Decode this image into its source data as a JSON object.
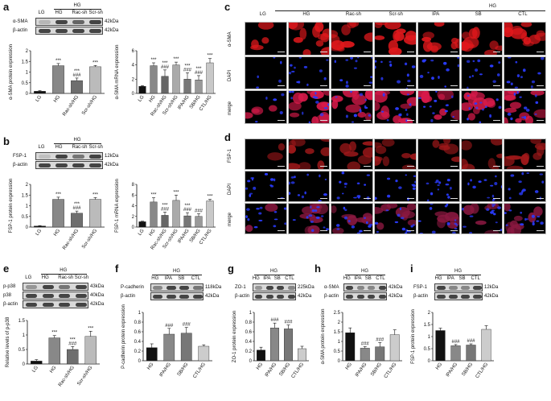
{
  "panel_labels": {
    "a": "a",
    "b": "b",
    "c": "c",
    "d": "d",
    "e": "e",
    "f": "f",
    "g": "g",
    "h": "h",
    "i": "i"
  },
  "panel_a": {
    "group_header": "HG",
    "lanes": [
      "LG",
      "HG",
      "Rac-sh",
      "Scr-sh"
    ],
    "blot_rows": [
      {
        "label": "α-SMA",
        "size": "42kDa",
        "intensity": [
          0.2,
          0.9,
          0.7,
          0.9
        ]
      },
      {
        "label": "β-actin",
        "size": "42kDa",
        "intensity": [
          0.9,
          0.9,
          0.9,
          0.9
        ]
      }
    ]
  },
  "panel_b": {
    "group_header": "HG",
    "lanes": [
      "LG",
      "HG",
      "Rac-sh",
      "Scr-sh"
    ],
    "blot_rows": [
      {
        "label": "FSP-1",
        "size": "12kDa",
        "intensity": [
          0.15,
          0.9,
          0.6,
          0.9
        ]
      },
      {
        "label": "β-actin",
        "size": "42kDa",
        "intensity": [
          0.9,
          0.9,
          0.9,
          0.9
        ]
      }
    ]
  },
  "panel_e": {
    "group_header": "HG",
    "lanes": [
      "LG",
      "HG",
      "Rac-sh",
      "Scr-sh"
    ],
    "blot_rows": [
      {
        "label": "p-p38",
        "size": "43kDa",
        "intensity": [
          0.4,
          0.9,
          0.6,
          0.9
        ]
      },
      {
        "label": "p38",
        "size": "40kDa",
        "intensity": [
          0.9,
          0.9,
          0.9,
          0.9
        ]
      },
      {
        "label": "β-actin",
        "size": "42kDa",
        "intensity": [
          0.9,
          0.9,
          0.9,
          0.9
        ]
      }
    ]
  },
  "panel_f": {
    "group_header": "HG",
    "lanes": [
      "HG",
      "IPA",
      "SB",
      "CTL"
    ],
    "blot_rows": [
      {
        "label": "P-cadherin",
        "size": "118kDa",
        "intensity": [
          0.5,
          0.9,
          0.9,
          0.6
        ]
      },
      {
        "label": "β-actin",
        "size": "42kDa",
        "intensity": [
          0.9,
          0.9,
          0.9,
          0.9
        ]
      }
    ]
  },
  "panel_g": {
    "group_header": "HG",
    "lanes": [
      "HG",
      "IPA",
      "SB",
      "CTL"
    ],
    "blot_rows": [
      {
        "label": "ZO-1",
        "size": "225kDa",
        "intensity": [
          0.4,
          0.9,
          0.9,
          0.5
        ]
      },
      {
        "label": "β-actin",
        "size": "42kDa",
        "intensity": [
          0.9,
          0.9,
          0.9,
          0.9
        ]
      }
    ]
  },
  "panel_h": {
    "group_header": "HG",
    "lanes": [
      "HG",
      "IPA",
      "SB",
      "CTL"
    ],
    "blot_rows": [
      {
        "label": "α-SMA",
        "size": "42kDa",
        "intensity": [
          0.9,
          0.5,
          0.5,
          0.9
        ]
      },
      {
        "label": "β-actin",
        "size": "42kDa",
        "intensity": [
          0.9,
          0.9,
          0.9,
          0.9
        ]
      }
    ]
  },
  "panel_i": {
    "group_header": "HG",
    "lanes": [
      "HG",
      "IPA",
      "SB",
      "CTL"
    ],
    "blot_rows": [
      {
        "label": "FSP-1",
        "size": "12kDa",
        "intensity": [
          0.9,
          0.5,
          0.5,
          0.9
        ]
      },
      {
        "label": "β-actin",
        "size": "42kDa",
        "intensity": [
          0.9,
          0.9,
          0.9,
          0.9
        ]
      }
    ]
  },
  "panel_c": {
    "group_header": "HG",
    "columns": [
      "LG",
      "HG",
      "Rac-sh",
      "Scr-sh",
      "IPA",
      "SB",
      "CTL"
    ],
    "rows": [
      "α-SMA",
      "DAPI",
      "merge"
    ]
  },
  "panel_d": {
    "rows": [
      "FSP-1",
      "DAPI",
      "merge"
    ]
  },
  "chart_data": [
    {
      "id": "a_protein",
      "type": "bar",
      "categories": [
        "LG",
        "HG",
        "Rac-sh/HG",
        "Scr-sh/HG"
      ],
      "values": [
        0.1,
        1.3,
        0.6,
        1.25
      ],
      "errors": [
        0.03,
        0.1,
        0.12,
        0.06
      ],
      "colors": [
        "#111111",
        "#888888",
        "#6e6e6e",
        "#bbbbbb"
      ],
      "annotations": [
        "",
        "***",
        "***\n###",
        "***"
      ],
      "ylabel": "α-SMA protein expression",
      "ylim": [
        0,
        2.0
      ],
      "yticks": [
        0.0,
        0.5,
        1.0,
        1.5,
        2.0
      ]
    },
    {
      "id": "a_mrna",
      "type": "bar",
      "categories": [
        "LG",
        "HG",
        "Rac-sh/HG",
        "Scr-sh/HG",
        "IPA/HG",
        "SB/HG",
        "CTL/HG"
      ],
      "values": [
        1.0,
        3.9,
        2.4,
        4.0,
        2.0,
        1.9,
        4.3
      ],
      "errors": [
        0.1,
        0.4,
        0.9,
        0.4,
        0.9,
        0.6,
        0.6
      ],
      "colors": [
        "#111111",
        "#888888",
        "#666666",
        "#aaaaaa",
        "#777777",
        "#999999",
        "#c8c8c8"
      ],
      "annotations": [
        "",
        "***",
        "***\n###",
        "***",
        "***\n###",
        "***\n###",
        "***"
      ],
      "ylabel": "α-SMA mRNA expression",
      "ylim": [
        0,
        6
      ],
      "yticks": [
        0,
        2,
        4,
        6
      ]
    },
    {
      "id": "b_protein",
      "type": "bar",
      "categories": [
        "LG",
        "HG",
        "Rac-sh/HG",
        "Scr-sh/HG"
      ],
      "values": [
        0.05,
        1.3,
        0.65,
        1.3
      ],
      "errors": [
        0.02,
        0.1,
        0.1,
        0.08
      ],
      "colors": [
        "#111111",
        "#888888",
        "#6e6e6e",
        "#bbbbbb"
      ],
      "annotations": [
        "",
        "***",
        "***\n###",
        "***"
      ],
      "ylabel": "FSP-1 protein expression",
      "ylim": [
        0,
        2.0
      ],
      "yticks": [
        0.0,
        0.5,
        1.0,
        1.5,
        2.0
      ]
    },
    {
      "id": "b_mrna",
      "type": "bar",
      "categories": [
        "LG",
        "HG",
        "Rac-sh/HG",
        "Scr-sh/HG",
        "IPA/HG",
        "SB/HG",
        "CTL/HG"
      ],
      "values": [
        1.0,
        4.7,
        2.2,
        5.0,
        2.1,
        2.0,
        4.9
      ],
      "errors": [
        0.1,
        0.8,
        0.6,
        1.0,
        0.6,
        0.5,
        0.3
      ],
      "colors": [
        "#111111",
        "#888888",
        "#666666",
        "#aaaaaa",
        "#777777",
        "#999999",
        "#c8c8c8"
      ],
      "annotations": [
        "",
        "***",
        "***\n###",
        "***",
        "***\n###",
        "###",
        "***"
      ],
      "ylabel": "FSP-1 mRNA expression",
      "ylim": [
        0,
        8
      ],
      "yticks": [
        0,
        2,
        4,
        6,
        8
      ]
    },
    {
      "id": "e_p38",
      "type": "bar",
      "categories": [
        "LG",
        "HG",
        "Rac-sh/HG",
        "Scr-sh/HG"
      ],
      "values": [
        0.1,
        0.9,
        0.5,
        0.95
      ],
      "errors": [
        0.05,
        0.08,
        0.1,
        0.18
      ],
      "colors": [
        "#111111",
        "#888888",
        "#6e6e6e",
        "#bbbbbb"
      ],
      "annotations": [
        "",
        "***",
        "***\n###",
        "***"
      ],
      "ylabel": "Relative levels of p-p38",
      "ylim": [
        0,
        1.5
      ],
      "yticks": [
        0.0,
        0.5,
        1.0,
        1.5
      ]
    },
    {
      "id": "f_pcad",
      "type": "bar",
      "categories": [
        "HG",
        "IPA/HG",
        "SB/HG",
        "CTL/HG"
      ],
      "values": [
        0.27,
        0.55,
        0.57,
        0.3
      ],
      "errors": [
        0.08,
        0.12,
        0.12,
        0.03
      ],
      "colors": [
        "#111111",
        "#888888",
        "#777777",
        "#cccccc"
      ],
      "annotations": [
        "",
        "###",
        "###",
        ""
      ],
      "ylabel": "P-cadherin protein expression",
      "ylim": [
        0,
        1.0
      ],
      "yticks": [
        0.0,
        0.2,
        0.4,
        0.6,
        0.8,
        1.0
      ]
    },
    {
      "id": "g_zo1",
      "type": "bar",
      "categories": [
        "HG",
        "IPA/HG",
        "SB/HG",
        "CTL/HG"
      ],
      "values": [
        0.22,
        0.68,
        0.66,
        0.25
      ],
      "errors": [
        0.06,
        0.1,
        0.08,
        0.05
      ],
      "colors": [
        "#111111",
        "#888888",
        "#777777",
        "#cccccc"
      ],
      "annotations": [
        "",
        "###",
        "###",
        ""
      ],
      "ylabel": "ZO-1 protein expression",
      "ylim": [
        0,
        1.0
      ],
      "yticks": [
        0.0,
        0.2,
        0.4,
        0.6,
        0.8,
        1.0
      ]
    },
    {
      "id": "h_asma",
      "type": "bar",
      "categories": [
        "HG",
        "IPA/HG",
        "SB/HG",
        "CTL/HG"
      ],
      "values": [
        1.45,
        0.65,
        0.72,
        1.35
      ],
      "errors": [
        0.25,
        0.08,
        0.22,
        0.25
      ],
      "colors": [
        "#111111",
        "#888888",
        "#777777",
        "#cccccc"
      ],
      "annotations": [
        "",
        "###",
        "###",
        ""
      ],
      "ylabel": "α-SMA protein expression",
      "ylim": [
        0,
        2.5
      ],
      "yticks": [
        0.0,
        0.5,
        1.0,
        1.5,
        2.0,
        2.5
      ]
    },
    {
      "id": "i_fsp1",
      "type": "bar",
      "categories": [
        "HG",
        "IPA/HG",
        "SB/HG",
        "CTL/HG"
      ],
      "values": [
        1.25,
        0.62,
        0.65,
        1.3
      ],
      "errors": [
        0.1,
        0.05,
        0.05,
        0.15
      ],
      "colors": [
        "#111111",
        "#888888",
        "#777777",
        "#cccccc"
      ],
      "annotations": [
        "",
        "###",
        "###",
        ""
      ],
      "ylabel": "FSP-1 protein expression",
      "ylim": [
        0,
        2.0
      ],
      "yticks": [
        0.0,
        0.5,
        1.0,
        1.5,
        2.0
      ]
    }
  ]
}
